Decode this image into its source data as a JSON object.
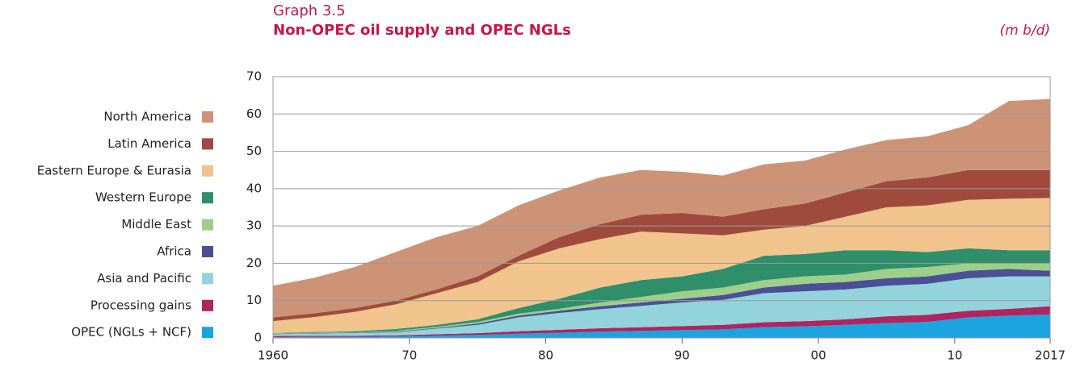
{
  "chart_data": {
    "type": "stacked_area",
    "graph_label": "Graph 3.5",
    "title": "Non-OPEC oil supply and OPEC NGLs",
    "unit_label": "(m b/d)",
    "x": [
      1960,
      1963,
      1966,
      1969,
      1972,
      1975,
      1978,
      1981,
      1984,
      1987,
      1990,
      1993,
      1996,
      1999,
      2002,
      2005,
      2008,
      2011,
      2014,
      2017
    ],
    "series": [
      {
        "name": "OPEC (NGLs + NCF)",
        "color": "#1ba4e0",
        "values": [
          0.2,
          0.3,
          0.3,
          0.4,
          0.6,
          0.8,
          1.1,
          1.4,
          1.7,
          1.9,
          2.1,
          2.3,
          2.9,
          3.1,
          3.5,
          4.0,
          4.3,
          5.5,
          6.0,
          6.3
        ]
      },
      {
        "name": "Processing gains",
        "color": "#b0245f",
        "values": [
          0.3,
          0.3,
          0.3,
          0.3,
          0.4,
          0.5,
          0.7,
          0.8,
          0.9,
          1.0,
          1.1,
          1.2,
          1.3,
          1.4,
          1.5,
          1.8,
          1.9,
          1.8,
          1.8,
          2.2
        ]
      },
      {
        "name": "Asia and Pacific",
        "color": "#93d3db",
        "values": [
          0.5,
          0.6,
          0.7,
          0.8,
          1.5,
          2.2,
          3.7,
          4.5,
          5.1,
          5.7,
          6.3,
          6.7,
          7.8,
          8.0,
          8.0,
          8.2,
          8.3,
          8.7,
          8.7,
          8.0
        ]
      },
      {
        "name": "Africa",
        "color": "#4a4f96",
        "values": [
          0.1,
          0.1,
          0.1,
          0.2,
          0.2,
          0.4,
          0.5,
          0.6,
          0.8,
          0.9,
          1.0,
          1.3,
          1.5,
          2.0,
          2.0,
          2.0,
          2.0,
          2.0,
          2.0,
          1.5
        ]
      },
      {
        "name": "Middle East",
        "color": "#9dcf8a",
        "values": [
          0.1,
          0.1,
          0.1,
          0.2,
          0.3,
          0.4,
          0.5,
          0.5,
          1.0,
          1.5,
          2.0,
          2.0,
          2.0,
          2.0,
          2.0,
          2.5,
          2.5,
          2.0,
          1.5,
          2.0
        ]
      },
      {
        "name": "Western Europe",
        "color": "#2e8f6a",
        "values": [
          0.1,
          0.2,
          0.3,
          0.5,
          0.5,
          0.7,
          1.5,
          2.7,
          4.0,
          4.5,
          4.0,
          5.0,
          6.5,
          6.0,
          6.5,
          5.0,
          4.0,
          4.0,
          3.5,
          3.5
        ]
      },
      {
        "name": "Eastern Europe & Eurasia",
        "color": "#f0c48c",
        "values": [
          3.2,
          4.0,
          5.2,
          6.6,
          8.5,
          10.0,
          12.5,
          13.5,
          13.0,
          13.0,
          11.5,
          9.0,
          7.0,
          7.5,
          9.0,
          11.5,
          12.5,
          13.0,
          13.8,
          14.0
        ]
      },
      {
        "name": "Latin America",
        "color": "#a04a3e",
        "values": [
          1.0,
          1.0,
          1.0,
          1.0,
          1.0,
          1.5,
          1.5,
          3.0,
          4.0,
          4.5,
          5.5,
          5.0,
          5.5,
          6.0,
          6.5,
          7.0,
          7.5,
          8.0,
          7.7,
          7.5
        ]
      },
      {
        "name": "North America",
        "color": "#cc9377",
        "values": [
          8.5,
          9.5,
          11,
          13,
          14,
          13.5,
          13.5,
          12.5,
          12.5,
          12,
          11,
          11,
          12,
          11.5,
          11.5,
          11,
          11,
          12,
          18.5,
          19
        ]
      }
    ],
    "xlim": [
      1960,
      2017
    ],
    "xticks": [
      1960,
      {
        "value": 1970,
        "label": "70"
      },
      {
        "value": 1980,
        "label": "80"
      },
      {
        "value": 1990,
        "label": "90"
      },
      {
        "value": 2000,
        "label": "00"
      },
      {
        "value": 2010,
        "label": "10"
      },
      2017
    ],
    "ylim": [
      0,
      70
    ],
    "yticks": [
      0,
      10,
      20,
      30,
      40,
      50,
      60,
      70
    ],
    "grid": true
  }
}
